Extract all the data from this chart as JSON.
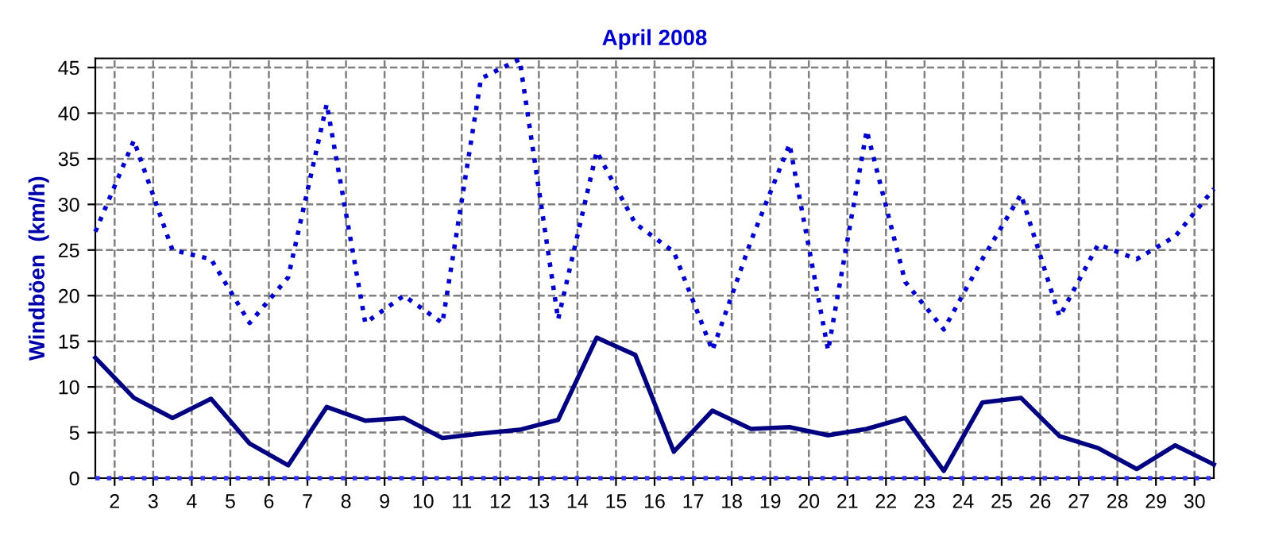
{
  "chart_data": {
    "type": "line",
    "title": "April 2008",
    "ylabel": "Windböen  (km/h)",
    "x": [
      1.5,
      2.5,
      3.5,
      4.5,
      5.5,
      6.5,
      7.5,
      8.5,
      9.5,
      10.5,
      11.5,
      12.5,
      13.5,
      14.5,
      15.5,
      16.5,
      17.5,
      18.5,
      19.5,
      20.5,
      21.5,
      22.5,
      23.5,
      24.5,
      25.5,
      26.5,
      27.5,
      28.5,
      29.5,
      30.5
    ],
    "series": [
      {
        "color": "#0000cc",
        "line_style": "dotted",
        "values": [
          27,
          37,
          25,
          24,
          17,
          22,
          41,
          17,
          20,
          17,
          43.8,
          45.9,
          17.4,
          35.8,
          27.9,
          24.8,
          14,
          26,
          36.6,
          14,
          38.1,
          21.5,
          16.3,
          24,
          31.1,
          17.7,
          25.6,
          24,
          26.5,
          31.7
        ]
      },
      {
        "color": "#000080",
        "line_style": "solid",
        "values": [
          13.2,
          8.8,
          6.6,
          8.7,
          3.8,
          1.4,
          7.8,
          6.3,
          6.6,
          4.4,
          4.9,
          5.3,
          6.4,
          15.4,
          13.5,
          2.9,
          7.4,
          5.4,
          5.6,
          4.7,
          5.4,
          6.6,
          0.8,
          8.3,
          8.8,
          4.6,
          3.3,
          1.0,
          3.6,
          1.5
        ]
      },
      {
        "color": "#3333ff",
        "line_style": "dotted",
        "values": [
          0,
          0,
          0,
          0,
          0,
          0,
          0,
          0,
          0,
          0,
          0,
          0,
          0,
          0,
          0,
          0,
          0,
          0,
          0,
          0,
          0,
          0,
          0,
          0,
          0,
          0,
          0,
          0,
          0,
          0
        ]
      }
    ],
    "xlim": [
      1.5,
      30.5
    ],
    "xticks": [
      2,
      3,
      4,
      5,
      6,
      7,
      8,
      9,
      10,
      11,
      12,
      13,
      14,
      15,
      16,
      17,
      18,
      19,
      20,
      21,
      22,
      23,
      24,
      25,
      26,
      27,
      28,
      29,
      30
    ],
    "ylim": [
      0,
      46
    ],
    "yticks": [
      0,
      5,
      10,
      15,
      20,
      25,
      30,
      35,
      40,
      45
    ],
    "grid": true,
    "marker": "none"
  }
}
